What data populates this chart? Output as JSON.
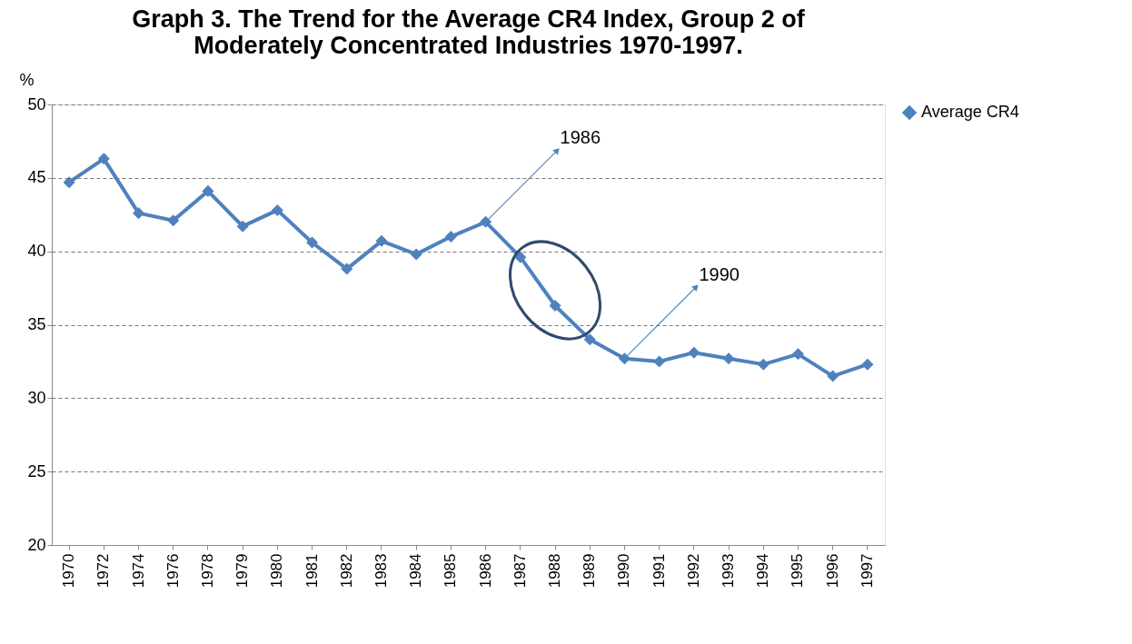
{
  "chart_data": {
    "type": "line",
    "title": [
      "Graph 3. The Trend for the Average CR4 Index, Group 2 of",
      "Moderately  Concentrated Industries 1970-1997."
    ],
    "ylabel": "%",
    "categories": [
      "1970",
      "1972",
      "1974",
      "1976",
      "1978",
      "1979",
      "1980",
      "1981",
      "1982",
      "1983",
      "1984",
      "1985",
      "1986",
      "1987",
      "1988",
      "1989",
      "1990",
      "1991",
      "1992",
      "1993",
      "1994",
      "1995",
      "1996",
      "1997"
    ],
    "series": [
      {
        "name": "Average CR4",
        "color": "#4f81bd",
        "values": [
          44.7,
          46.3,
          42.6,
          42.1,
          44.1,
          41.7,
          42.8,
          40.6,
          38.8,
          40.7,
          39.8,
          41.0,
          42.0,
          39.6,
          36.3,
          34.0,
          32.7,
          32.5,
          33.1,
          32.7,
          32.3,
          33.0,
          31.5,
          32.3
        ]
      }
    ],
    "ylim": [
      20,
      50
    ],
    "yticks": [
      20,
      25,
      30,
      35,
      40,
      45,
      50
    ],
    "grid": "y",
    "legend": "right",
    "marker": "diamond",
    "line_style": "solid",
    "annotations": [
      {
        "text": "1986",
        "x": "1986",
        "y": 42.0
      },
      {
        "text": "1990",
        "x": "1990",
        "y": 32.7
      }
    ]
  }
}
